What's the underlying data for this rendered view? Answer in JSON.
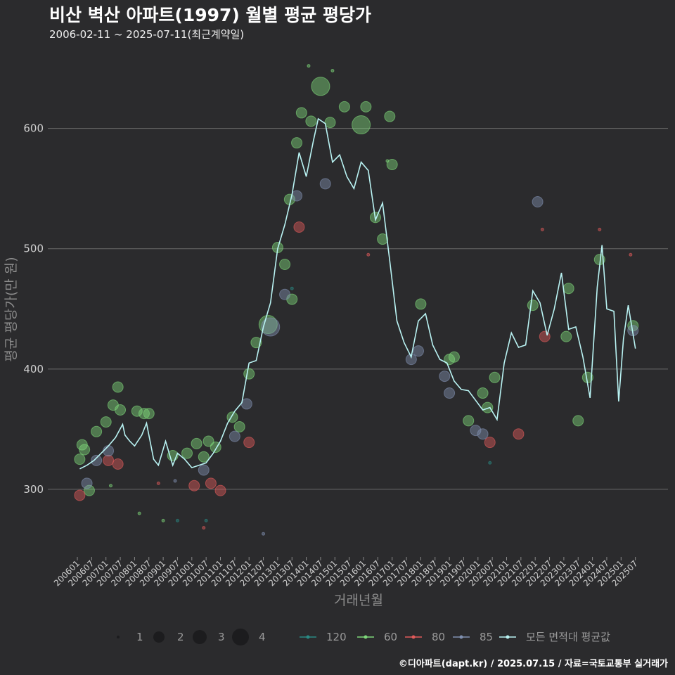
{
  "header": {
    "title": "비산 벽산 아파트(1997) 월별 평균 평당가",
    "subtitle": "2006-02-11 ~ 2025-07-11(최근계약일)"
  },
  "footer": {
    "credit": "©디아파트(dapt.kr) / 2025.07.15 / 자료=국토교통부 실거래가"
  },
  "colors": {
    "background": "#2b2b2d",
    "grid": "#6a6a6a",
    "area_120": "#2a8a84",
    "area_60": "#7ed87a",
    "area_80": "#e05a5a",
    "area_85": "#8090b0",
    "avg_line": "#b9f3f3"
  },
  "chart_data": {
    "type": "scatter",
    "title": "비산 벽산 아파트(1997) 월별 평균 평당가",
    "xlabel": "거래년월",
    "ylabel": "평균 평당가(만 원)",
    "ylim": [
      245,
      660
    ],
    "y_ticks": [
      300,
      400,
      500,
      600
    ],
    "x_tick_labels": [
      "200601",
      "200607",
      "200701",
      "200707",
      "200801",
      "200807",
      "200901",
      "200907",
      "201001",
      "201007",
      "201101",
      "201107",
      "201201",
      "201207",
      "201301",
      "201307",
      "201401",
      "201407",
      "201501",
      "201507",
      "201601",
      "201607",
      "201701",
      "201707",
      "201801",
      "201807",
      "201901",
      "201907",
      "202001",
      "202007",
      "202101",
      "202107",
      "202201",
      "202207",
      "202301",
      "202307",
      "202401",
      "202407",
      "202501",
      "202507"
    ],
    "grid": true,
    "legend_position": "bottom",
    "size_legend": {
      "values": [
        1,
        2,
        3,
        4
      ],
      "labels": [
        "1",
        "2",
        "3",
        "4"
      ]
    },
    "color_legend": [
      "120",
      "60",
      "80",
      "85",
      "모든 면적대 평균값"
    ],
    "series": [
      {
        "name": "모든 면적대 평균값",
        "kind": "line",
        "points": [
          [
            "2006-02",
            317
          ],
          [
            "2006-05",
            320
          ],
          [
            "2006-08",
            324
          ],
          [
            "2006-11",
            330
          ],
          [
            "2007-02",
            336
          ],
          [
            "2007-05",
            343
          ],
          [
            "2007-08",
            354
          ],
          [
            "2007-09",
            345
          ],
          [
            "2007-11",
            340
          ],
          [
            "2008-01",
            336
          ],
          [
            "2008-04",
            345
          ],
          [
            "2008-06",
            355
          ],
          [
            "2008-09",
            325
          ],
          [
            "2008-11",
            320
          ],
          [
            "2009-02",
            340
          ],
          [
            "2009-05",
            320
          ],
          [
            "2009-07",
            330
          ],
          [
            "2009-10",
            325
          ],
          [
            "2010-01",
            318
          ],
          [
            "2010-04",
            320
          ],
          [
            "2010-07",
            322
          ],
          [
            "2010-10",
            330
          ],
          [
            "2011-01",
            340
          ],
          [
            "2011-04",
            355
          ],
          [
            "2011-07",
            365
          ],
          [
            "2011-10",
            372
          ],
          [
            "2012-01",
            405
          ],
          [
            "2012-04",
            407
          ],
          [
            "2012-07",
            435
          ],
          [
            "2012-10",
            455
          ],
          [
            "2013-01",
            500
          ],
          [
            "2013-04",
            520
          ],
          [
            "2013-07",
            545
          ],
          [
            "2013-10",
            580
          ],
          [
            "2014-01",
            560
          ],
          [
            "2014-04",
            590
          ],
          [
            "2014-06",
            608
          ],
          [
            "2014-09",
            604
          ],
          [
            "2014-12",
            572
          ],
          [
            "2015-03",
            578
          ],
          [
            "2015-06",
            560
          ],
          [
            "2015-09",
            550
          ],
          [
            "2015-12",
            572
          ],
          [
            "2016-03",
            565
          ],
          [
            "2016-06",
            524
          ],
          [
            "2016-09",
            538
          ],
          [
            "2016-12",
            490
          ],
          [
            "2017-03",
            440
          ],
          [
            "2017-06",
            422
          ],
          [
            "2017-09",
            410
          ],
          [
            "2017-12",
            440
          ],
          [
            "2018-03",
            446
          ],
          [
            "2018-06",
            420
          ],
          [
            "2018-09",
            408
          ],
          [
            "2018-12",
            405
          ],
          [
            "2019-03",
            390
          ],
          [
            "2019-06",
            383
          ],
          [
            "2019-09",
            382
          ],
          [
            "2019-12",
            374
          ],
          [
            "2020-03",
            366
          ],
          [
            "2020-06",
            368
          ],
          [
            "2020-09",
            358
          ],
          [
            "2020-12",
            405
          ],
          [
            "2021-03",
            430
          ],
          [
            "2021-06",
            418
          ],
          [
            "2021-09",
            420
          ],
          [
            "2021-12",
            465
          ],
          [
            "2022-03",
            455
          ],
          [
            "2022-06",
            428
          ],
          [
            "2022-09",
            450
          ],
          [
            "2022-12",
            480
          ],
          [
            "2023-03",
            433
          ],
          [
            "2023-06",
            435
          ],
          [
            "2023-09",
            410
          ],
          [
            "2023-12",
            376
          ],
          [
            "2024-03",
            468
          ],
          [
            "2024-05",
            503
          ],
          [
            "2024-07",
            450
          ],
          [
            "2024-10",
            448
          ],
          [
            "2024-12",
            373
          ],
          [
            "2025-02",
            425
          ],
          [
            "2025-04",
            453
          ],
          [
            "2025-07",
            417
          ]
        ]
      },
      {
        "name": "60",
        "kind": "bubbles",
        "points": [
          [
            "2006-02",
            325,
            2
          ],
          [
            "2006-03",
            337,
            2
          ],
          [
            "2006-04",
            333,
            2
          ],
          [
            "2006-06",
            299,
            2
          ],
          [
            "2006-09",
            348,
            2
          ],
          [
            "2007-01",
            356,
            2
          ],
          [
            "2007-06",
            385,
            2
          ],
          [
            "2007-04",
            370,
            2
          ],
          [
            "2007-07",
            366,
            2
          ],
          [
            "2008-02",
            365,
            2
          ],
          [
            "2008-05",
            363,
            2
          ],
          [
            "2008-07",
            363,
            2
          ],
          [
            "2009-05",
            328,
            2
          ],
          [
            "2009-11",
            330,
            2
          ],
          [
            "2010-03",
            338,
            2
          ],
          [
            "2010-06",
            327,
            2
          ],
          [
            "2010-08",
            340,
            2
          ],
          [
            "2010-11",
            335,
            2
          ],
          [
            "2011-06",
            360,
            2
          ],
          [
            "2011-09",
            352,
            2
          ],
          [
            "2012-01",
            396,
            2
          ],
          [
            "2012-04",
            422,
            2
          ],
          [
            "2012-09",
            437,
            3
          ],
          [
            "2013-01",
            501,
            2
          ],
          [
            "2013-04",
            487,
            2
          ],
          [
            "2013-06",
            541,
            2
          ],
          [
            "2013-09",
            588,
            2
          ],
          [
            "2013-07",
            458,
            2
          ],
          [
            "2013-11",
            613,
            2
          ],
          [
            "2014-03",
            606,
            2
          ],
          [
            "2014-07",
            635,
            3
          ],
          [
            "2014-11",
            605,
            2
          ],
          [
            "2015-05",
            618,
            2
          ],
          [
            "2015-12",
            603,
            3
          ],
          [
            "2016-02",
            618,
            2
          ],
          [
            "2016-06",
            526,
            2
          ],
          [
            "2016-09",
            508,
            2
          ],
          [
            "2016-12",
            610,
            2
          ],
          [
            "2017-01",
            570,
            2
          ],
          [
            "2018-01",
            454,
            2
          ],
          [
            "2019-01",
            408,
            2
          ],
          [
            "2019-03",
            410,
            2
          ],
          [
            "2019-09",
            357,
            2
          ],
          [
            "2020-03",
            380,
            2
          ],
          [
            "2020-05",
            368,
            2
          ],
          [
            "2020-08",
            393,
            2
          ],
          [
            "2021-12",
            453,
            2
          ],
          [
            "2023-03",
            467,
            2
          ],
          [
            "2023-02",
            427,
            2
          ],
          [
            "2023-07",
            357,
            2
          ],
          [
            "2023-11",
            393,
            2
          ],
          [
            "2024-04",
            491,
            2
          ],
          [
            "2025-06",
            436,
            2
          ],
          [
            "2009-01",
            274,
            1
          ],
          [
            "2008-03",
            280,
            1
          ],
          [
            "2007-03",
            303,
            1
          ],
          [
            "2016-11",
            573,
            1
          ],
          [
            "2014-02",
            652,
            1
          ],
          [
            "2014-12",
            648,
            1
          ]
        ]
      },
      {
        "name": "80",
        "kind": "bubbles",
        "points": [
          [
            "2006-02",
            295,
            2
          ],
          [
            "2007-02",
            324,
            2
          ],
          [
            "2007-06",
            321,
            2
          ],
          [
            "2010-02",
            303,
            2
          ],
          [
            "2010-09",
            305,
            2
          ],
          [
            "2011-01",
            299,
            2
          ],
          [
            "2012-01",
            339,
            2
          ],
          [
            "2013-10",
            518,
            2
          ],
          [
            "2020-06",
            339,
            2
          ],
          [
            "2021-06",
            346,
            2
          ],
          [
            "2022-05",
            427,
            2
          ],
          [
            "2008-11",
            305,
            1
          ],
          [
            "2010-06",
            268,
            1
          ],
          [
            "2016-03",
            495,
            1
          ],
          [
            "2022-04",
            516,
            1
          ],
          [
            "2024-04",
            516,
            1
          ],
          [
            "2025-05",
            495,
            1
          ]
        ]
      },
      {
        "name": "85",
        "kind": "bubbles",
        "points": [
          [
            "2006-05",
            305,
            2
          ],
          [
            "2006-09",
            324,
            2
          ],
          [
            "2007-02",
            332,
            2
          ],
          [
            "2010-06",
            316,
            2
          ],
          [
            "2011-07",
            344,
            2
          ],
          [
            "2011-12",
            371,
            2
          ],
          [
            "2012-10",
            435,
            3
          ],
          [
            "2013-04",
            462,
            2
          ],
          [
            "2013-09",
            544,
            2
          ],
          [
            "2014-09",
            554,
            2
          ],
          [
            "2017-09",
            408,
            2
          ],
          [
            "2017-12",
            415,
            2
          ],
          [
            "2018-11",
            394,
            2
          ],
          [
            "2019-01",
            380,
            2
          ],
          [
            "2019-12",
            349,
            2
          ],
          [
            "2020-03",
            346,
            2
          ],
          [
            "2022-02",
            539,
            2
          ],
          [
            "2025-06",
            432,
            2
          ],
          [
            "2012-07",
            263,
            1
          ],
          [
            "2009-06",
            307,
            1
          ]
        ]
      },
      {
        "name": "120",
        "kind": "bubbles",
        "points": [
          [
            "2009-07",
            274,
            1
          ],
          [
            "2010-07",
            274,
            1
          ],
          [
            "2020-06",
            322,
            1
          ],
          [
            "2013-07",
            467,
            1
          ]
        ]
      }
    ]
  }
}
